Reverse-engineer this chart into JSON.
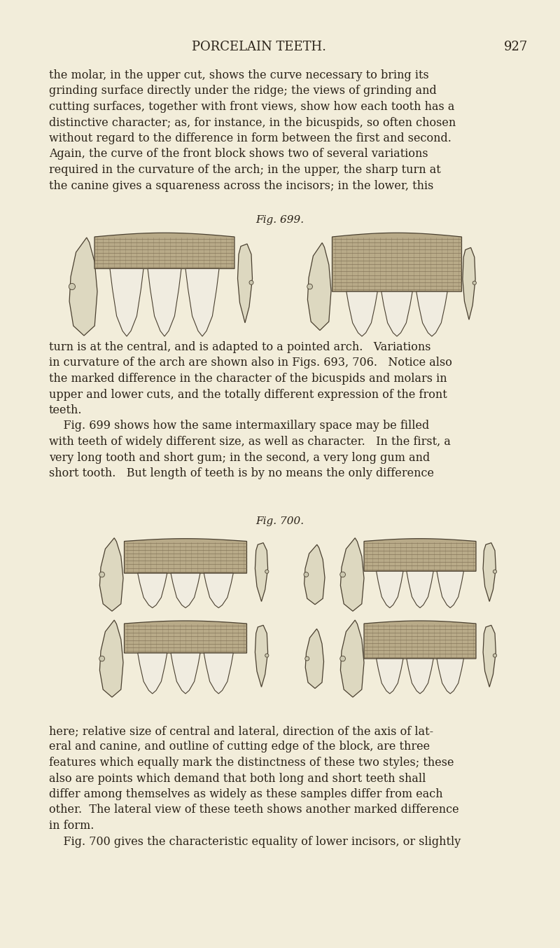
{
  "background_color": "#f2edda",
  "page_width": 8.0,
  "page_height": 13.53,
  "header_text": "PORCELAIN TEETH.",
  "header_dot": "·",
  "header_page": "927",
  "body_text_1": "the molar, in the upper cut, shows the curve necessary to bring its\ngrinding surface directly under the ridge; the views of grinding and\ncutting surfaces, together with front views, show how each tooth has a\ndistinctive character; as, for instance, in the bicuspids, so often chosen\nwithout regard to the difference in form between the first and second.\nAgain, the curve of the front block shows two of several variations\nrequired in the curvature of the arch; in the upper, the sharp turn at\nthe canine gives a squareness across the incisors; in the lower, this",
  "fig699_label": "Fig. 699.",
  "body_text_2": "turn is at the central, and is adapted to a pointed arch.   Variations\nin curvature of the arch are shown also in Figs. 693, 706.   Notice also\nthe marked difference in the character of the bicuspids and molars in\nupper and lower cuts, and the totally different expression of the front\nteeth.\n    Fig. 699 shows how the same intermaxillary space may be filled\nwith teeth of widely different size, as well as character.   In the first, a\nvery long tooth and short gum; in the second, a very long gum and\nshort tooth.   But length of teeth is by no means the only difference",
  "fig700_label": "Fig. 700.",
  "body_text_3": "here; relative size of central and lateral, direction of the axis of lat-\neral and canine, and outline of cutting edge of the block, are three\nfeatures which equally mark the distinctness of these two styles; these\nalso are points which demand that both long and short teeth shall\ndiffer among themselves as widely as these samples differ from each\nother.  The lateral view of these teeth shows another marked difference\nin form.\n    Fig. 700 gives the characteristic equality of lower incisors, or slightly",
  "text_color": "#2a2218",
  "gum_shade": "#b8aa88",
  "tooth_shade": "#f0ece0",
  "tooth_edge": "#4a4030",
  "hatch_color": "#7a6a50"
}
